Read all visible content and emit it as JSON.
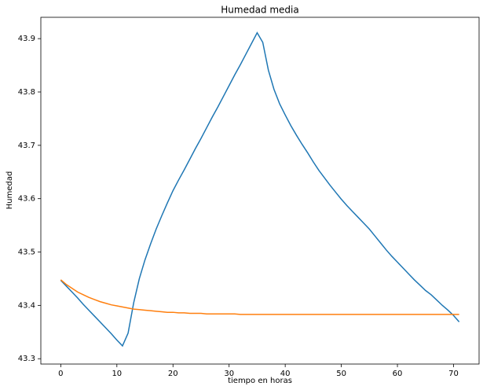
{
  "chart_data": {
    "type": "line",
    "title": "Humedad media",
    "xlabel": "tiempo en horas",
    "ylabel": "Humedad",
    "x": [
      0,
      1,
      2,
      3,
      4,
      5,
      6,
      7,
      8,
      9,
      10,
      11,
      12,
      13,
      14,
      15,
      16,
      17,
      18,
      19,
      20,
      21,
      22,
      23,
      24,
      25,
      26,
      27,
      28,
      29,
      30,
      31,
      32,
      33,
      34,
      35,
      36,
      37,
      38,
      39,
      40,
      41,
      42,
      43,
      44,
      45,
      46,
      47,
      48,
      49,
      50,
      51,
      52,
      53,
      54,
      55,
      56,
      57,
      58,
      59,
      60,
      61,
      62,
      63,
      64,
      65,
      66,
      67,
      68,
      69,
      70,
      71
    ],
    "series": [
      {
        "color": "#1f77b4",
        "values": [
          43.447,
          43.436,
          43.425,
          43.414,
          43.402,
          43.391,
          43.38,
          43.369,
          43.358,
          43.347,
          43.335,
          43.324,
          43.348,
          43.405,
          43.45,
          43.485,
          43.515,
          43.543,
          43.568,
          43.592,
          43.615,
          43.635,
          43.654,
          43.674,
          43.694,
          43.713,
          43.733,
          43.753,
          43.772,
          43.792,
          43.812,
          43.832,
          43.851,
          43.871,
          43.891,
          43.911,
          43.893,
          43.841,
          43.805,
          43.778,
          43.757,
          43.737,
          43.719,
          43.702,
          43.686,
          43.669,
          43.653,
          43.639,
          43.625,
          43.612,
          43.599,
          43.587,
          43.576,
          43.565,
          43.554,
          43.543,
          43.53,
          43.517,
          43.504,
          43.492,
          43.481,
          43.47,
          43.459,
          43.448,
          43.438,
          43.428,
          43.42,
          43.41,
          43.4,
          43.391,
          43.381,
          43.369
        ]
      },
      {
        "color": "#ff7f0e",
        "values": [
          43.448,
          43.439,
          43.432,
          43.425,
          43.42,
          43.415,
          43.411,
          43.407,
          43.404,
          43.401,
          43.399,
          43.397,
          43.395,
          43.393,
          43.392,
          43.391,
          43.39,
          43.389,
          43.388,
          43.387,
          43.387,
          43.386,
          43.386,
          43.385,
          43.385,
          43.385,
          43.384,
          43.384,
          43.384,
          43.384,
          43.384,
          43.384,
          43.383,
          43.383,
          43.383,
          43.383,
          43.383,
          43.383,
          43.383,
          43.383,
          43.383,
          43.383,
          43.383,
          43.383,
          43.383,
          43.383,
          43.383,
          43.383,
          43.383,
          43.383,
          43.383,
          43.383,
          43.383,
          43.383,
          43.383,
          43.383,
          43.383,
          43.383,
          43.383,
          43.383,
          43.383,
          43.383,
          43.383,
          43.383,
          43.383,
          43.383,
          43.383,
          43.383,
          43.383,
          43.383,
          43.383,
          43.383
        ]
      }
    ],
    "xlim": [
      -3.55,
      74.55
    ],
    "xticks": [
      0,
      10,
      20,
      30,
      40,
      50,
      60,
      70
    ],
    "ylim": [
      43.29,
      43.94
    ],
    "yticks": [
      43.3,
      43.4,
      43.5,
      43.6,
      43.7,
      43.8,
      43.9
    ]
  }
}
